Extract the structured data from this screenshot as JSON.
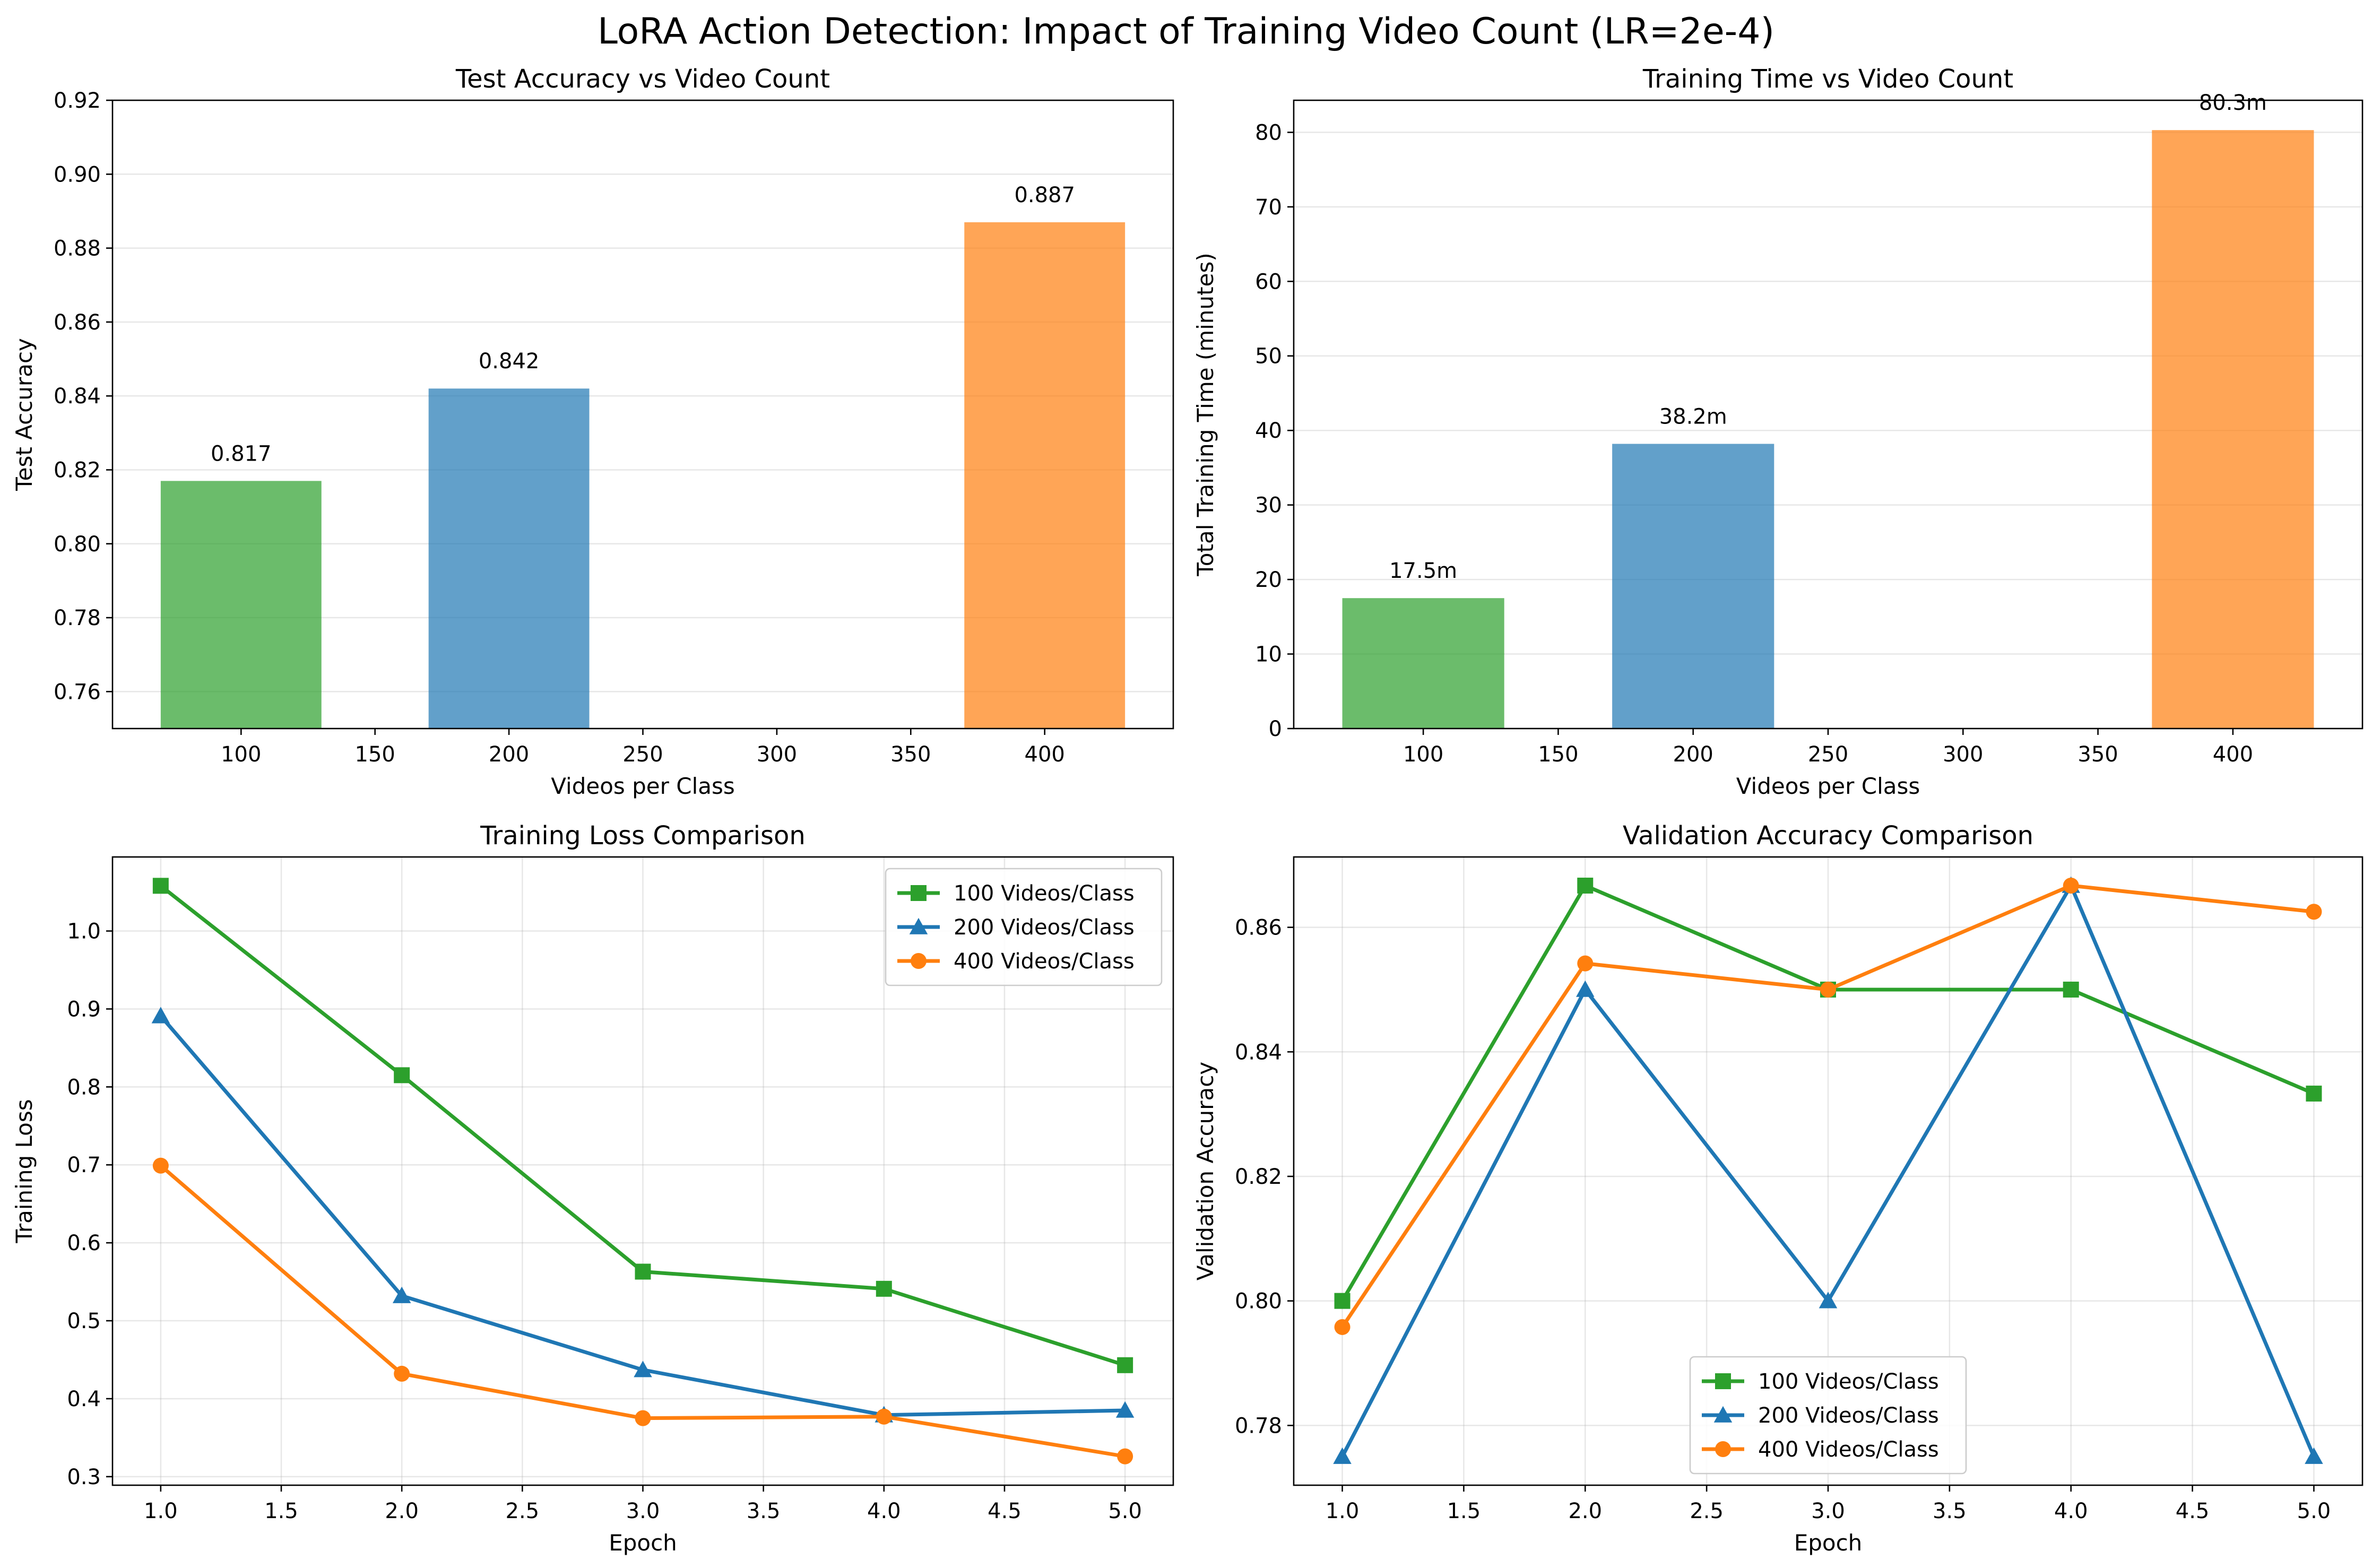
{
  "figure": {
    "title": "LoRA Action Detection: Impact of Training Video Count (LR=2e-4)"
  },
  "chart_data": [
    {
      "type": "bar",
      "title": "Test Accuracy vs Video Count",
      "xlabel": "Videos per Class",
      "ylabel": "Test Accuracy",
      "x": [
        100,
        200,
        400
      ],
      "values": [
        0.817,
        0.842,
        0.887
      ],
      "bar_labels": [
        "0.817",
        "0.842",
        "0.887"
      ],
      "bar_colors": [
        "#2ca02c",
        "#1f77b4",
        "#ff7f0e"
      ],
      "xlim": [
        52,
        448
      ],
      "ylim": [
        0.75,
        0.92
      ],
      "xticks": [
        100,
        150,
        200,
        250,
        300,
        350,
        400
      ],
      "xtick_labels": [
        "100",
        "150",
        "200",
        "250",
        "300",
        "350",
        "400"
      ],
      "yticks": [
        0.76,
        0.78,
        0.8,
        0.82,
        0.84,
        0.86,
        0.88,
        0.9,
        0.92
      ],
      "ytick_labels": [
        "0.76",
        "0.78",
        "0.80",
        "0.82",
        "0.84",
        "0.86",
        "0.88",
        "0.90",
        "0.92"
      ],
      "grid": "y"
    },
    {
      "type": "bar",
      "title": "Training Time vs Video Count",
      "xlabel": "Videos per Class",
      "ylabel": "Total Training Time (minutes)",
      "x": [
        100,
        200,
        400
      ],
      "values": [
        17.5,
        38.2,
        80.3
      ],
      "bar_labels": [
        "17.5m",
        "38.2m",
        "80.3m"
      ],
      "bar_colors": [
        "#2ca02c",
        "#1f77b4",
        "#ff7f0e"
      ],
      "xlim": [
        52,
        448
      ],
      "ylim": [
        0,
        84.3
      ],
      "xticks": [
        100,
        150,
        200,
        250,
        300,
        350,
        400
      ],
      "xtick_labels": [
        "100",
        "150",
        "200",
        "250",
        "300",
        "350",
        "400"
      ],
      "yticks": [
        0,
        10,
        20,
        30,
        40,
        50,
        60,
        70,
        80
      ],
      "ytick_labels": [
        "0",
        "10",
        "20",
        "30",
        "40",
        "50",
        "60",
        "70",
        "80"
      ],
      "grid": "y"
    },
    {
      "type": "line",
      "title": "Training Loss Comparison",
      "xlabel": "Epoch",
      "ylabel": "Training Loss",
      "x": [
        1,
        2,
        3,
        4,
        5
      ],
      "series": [
        {
          "name": "100 Videos/Class",
          "color": "#2ca02c",
          "marker": "square",
          "values": [
            1.058,
            0.815,
            0.563,
            0.541,
            0.443
          ]
        },
        {
          "name": "200 Videos/Class",
          "color": "#1f77b4",
          "marker": "triangle",
          "values": [
            0.891,
            0.532,
            0.437,
            0.379,
            0.385
          ]
        },
        {
          "name": "400 Videos/Class",
          "color": "#ff7f0e",
          "marker": "circle",
          "values": [
            0.699,
            0.432,
            0.375,
            0.377,
            0.326
          ]
        }
      ],
      "xlim": [
        0.8,
        5.2
      ],
      "ylim": [
        0.289,
        1.095
      ],
      "xticks": [
        1.0,
        1.5,
        2.0,
        2.5,
        3.0,
        3.5,
        4.0,
        4.5,
        5.0
      ],
      "xtick_labels": [
        "1.0",
        "1.5",
        "2.0",
        "2.5",
        "3.0",
        "3.5",
        "4.0",
        "4.5",
        "5.0"
      ],
      "yticks": [
        0.3,
        0.4,
        0.5,
        0.6,
        0.7,
        0.8,
        0.9,
        1.0
      ],
      "ytick_labels": [
        "0.3",
        "0.4",
        "0.5",
        "0.6",
        "0.7",
        "0.8",
        "0.9",
        "1.0"
      ],
      "legend": "upper-right",
      "grid": "both"
    },
    {
      "type": "line",
      "title": "Validation Accuracy Comparison",
      "xlabel": "Epoch",
      "ylabel": "Validation Accuracy",
      "x": [
        1,
        2,
        3,
        4,
        5
      ],
      "series": [
        {
          "name": "100 Videos/Class",
          "color": "#2ca02c",
          "marker": "square",
          "values": [
            0.8,
            0.8667,
            0.85,
            0.85,
            0.8333
          ]
        },
        {
          "name": "200 Videos/Class",
          "color": "#1f77b4",
          "marker": "triangle",
          "values": [
            0.775,
            0.85,
            0.8,
            0.8667,
            0.775
          ]
        },
        {
          "name": "400 Videos/Class",
          "color": "#ff7f0e",
          "marker": "circle",
          "values": [
            0.7958,
            0.8542,
            0.85,
            0.8667,
            0.8625
          ]
        }
      ],
      "xlim": [
        0.8,
        5.2
      ],
      "ylim": [
        0.7704,
        0.8713
      ],
      "xticks": [
        1.0,
        1.5,
        2.0,
        2.5,
        3.0,
        3.5,
        4.0,
        4.5,
        5.0
      ],
      "xtick_labels": [
        "1.0",
        "1.5",
        "2.0",
        "2.5",
        "3.0",
        "3.5",
        "4.0",
        "4.5",
        "5.0"
      ],
      "yticks": [
        0.78,
        0.8,
        0.82,
        0.84,
        0.86
      ],
      "ytick_labels": [
        "0.78",
        "0.80",
        "0.82",
        "0.84",
        "0.86"
      ],
      "legend": "lower-center",
      "grid": "both"
    }
  ]
}
